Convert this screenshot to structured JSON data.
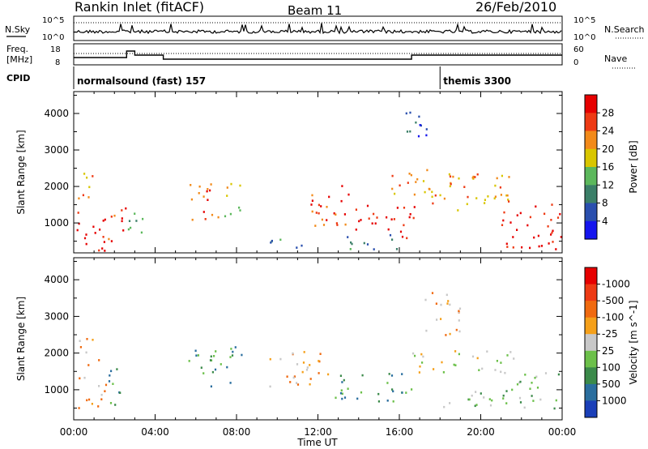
{
  "header": {
    "station": "Rankin Inlet (fitACF)",
    "beam": "Beam 11",
    "date": "26/Feb/2010"
  },
  "panel_labels": {
    "nsky": "N.Sky",
    "nsearch": "N.Search",
    "freq_line1": "Freq.",
    "freq_line2": "[MHz]",
    "nave": "Nave",
    "cpid": "CPID"
  },
  "small_axes": {
    "noise_left_top": "10^5",
    "noise_left_bottom": "10^0",
    "noise_right_top": "10^5",
    "noise_right_bottom": "10^0",
    "freq_left_top": "18",
    "freq_left_bottom": "8",
    "nave_right_top": "60",
    "nave_right_bottom": "0"
  },
  "cpid": [
    {
      "label": "normalsound (fast) 157",
      "start_hour": 0
    },
    {
      "label": "themis 3300",
      "start_hour": 18
    }
  ],
  "chart_data": [
    {
      "type": "heatmap",
      "title": "Power",
      "ylabel": "Slant Range [km]",
      "xlabel": "",
      "x_ticks": [
        "00:00",
        "04:00",
        "08:00",
        "12:00",
        "16:00",
        "20:00",
        "00:00"
      ],
      "xlim_hours": [
        0,
        24
      ],
      "ylim": [
        180,
        4600
      ],
      "y_ticks": [
        1000,
        2000,
        3000,
        4000
      ],
      "colorbar": {
        "label": "Power [dB]",
        "ticks": [
          "4",
          "8",
          "12",
          "16",
          "20",
          "24",
          "28"
        ],
        "colors": [
          "#1515ee",
          "#2a4fae",
          "#3b7f68",
          "#5cb85c",
          "#d9c600",
          "#f28a1a",
          "#ee3a14",
          "#e60000"
        ]
      },
      "scatter_regions": [
        {
          "t0": 0.0,
          "t1": 1.6,
          "r0": 200,
          "r1": 1400,
          "level": 7
        },
        {
          "t0": 1.6,
          "t1": 2.6,
          "r0": 500,
          "r1": 1600,
          "level": 6
        },
        {
          "t0": 0.2,
          "t1": 1.2,
          "r0": 1700,
          "r1": 2500,
          "level": 5
        },
        {
          "t0": 2.5,
          "t1": 3.4,
          "r0": 600,
          "r1": 1600,
          "level": 3
        },
        {
          "t0": 5.6,
          "t1": 7.2,
          "r0": 1100,
          "r1": 2200,
          "level": 6
        },
        {
          "t0": 7.4,
          "t1": 8.4,
          "r0": 1200,
          "r1": 2200,
          "level": 4
        },
        {
          "t0": 11.6,
          "t1": 13.6,
          "r0": 700,
          "r1": 2100,
          "level": 6
        },
        {
          "t0": 13.6,
          "t1": 16.8,
          "r0": 600,
          "r1": 1500,
          "level": 7
        },
        {
          "t0": 15.5,
          "t1": 17.5,
          "r0": 1800,
          "r1": 2600,
          "level": 5
        },
        {
          "t0": 16.2,
          "t1": 17.6,
          "r0": 3200,
          "r1": 4100,
          "level": 1
        },
        {
          "t0": 17.2,
          "t1": 21.6,
          "r0": 1300,
          "r1": 2400,
          "level": 5
        },
        {
          "t0": 21.0,
          "t1": 24.0,
          "r0": 300,
          "r1": 1600,
          "level": 7
        },
        {
          "t0": 9.6,
          "t1": 12.0,
          "r0": 300,
          "r1": 600,
          "level": 2
        },
        {
          "t0": 13.0,
          "t1": 16.0,
          "r0": 300,
          "r1": 700,
          "level": 2
        }
      ]
    },
    {
      "type": "heatmap",
      "title": "Velocity",
      "ylabel": "Slant Range [km]",
      "xlabel": "Time UT",
      "x_ticks": [
        "00:00",
        "04:00",
        "08:00",
        "12:00",
        "16:00",
        "20:00",
        "00:00"
      ],
      "xlim_hours": [
        0,
        24
      ],
      "ylim": [
        180,
        4600
      ],
      "y_ticks": [
        1000,
        2000,
        3000,
        4000
      ],
      "colorbar": {
        "label": "Velocity [m s^-1]",
        "ticks": [
          "1000",
          "500",
          "100",
          "25",
          "-25",
          "-100",
          "-500",
          "-1000"
        ],
        "colors": [
          "#1a3fb8",
          "#2a6e9e",
          "#3b8a4a",
          "#6cc04a",
          "#c8c8c8",
          "#f5a01a",
          "#f06a10",
          "#ee3a14",
          "#e60000"
        ]
      },
      "scatter_regions": [
        {
          "t0": 0.0,
          "t1": 1.6,
          "r0": 500,
          "r1": 1400,
          "level": 5
        },
        {
          "t0": 1.6,
          "t1": 2.6,
          "r0": 500,
          "r1": 1600,
          "level": 2
        },
        {
          "t0": 0.2,
          "t1": 1.2,
          "r0": 1700,
          "r1": 2500,
          "level": 5
        },
        {
          "t0": 5.6,
          "t1": 7.2,
          "r0": 1100,
          "r1": 2200,
          "level": 2
        },
        {
          "t0": 7.4,
          "t1": 8.4,
          "r0": 1200,
          "r1": 2200,
          "level": 2
        },
        {
          "t0": 9.6,
          "t1": 12.6,
          "r0": 1100,
          "r1": 2100,
          "level": 5
        },
        {
          "t0": 12.6,
          "t1": 16.6,
          "r0": 700,
          "r1": 1500,
          "level": 2
        },
        {
          "t0": 16.4,
          "t1": 21.6,
          "r0": 1500,
          "r1": 2100,
          "level": 4
        },
        {
          "t0": 17.0,
          "t1": 19.0,
          "r0": 2500,
          "r1": 3700,
          "level": 5
        },
        {
          "t0": 21.0,
          "t1": 24.0,
          "r0": 500,
          "r1": 1500,
          "level": 3
        },
        {
          "t0": 18.0,
          "t1": 21.0,
          "r0": 500,
          "r1": 1000,
          "level": 3
        }
      ]
    }
  ]
}
